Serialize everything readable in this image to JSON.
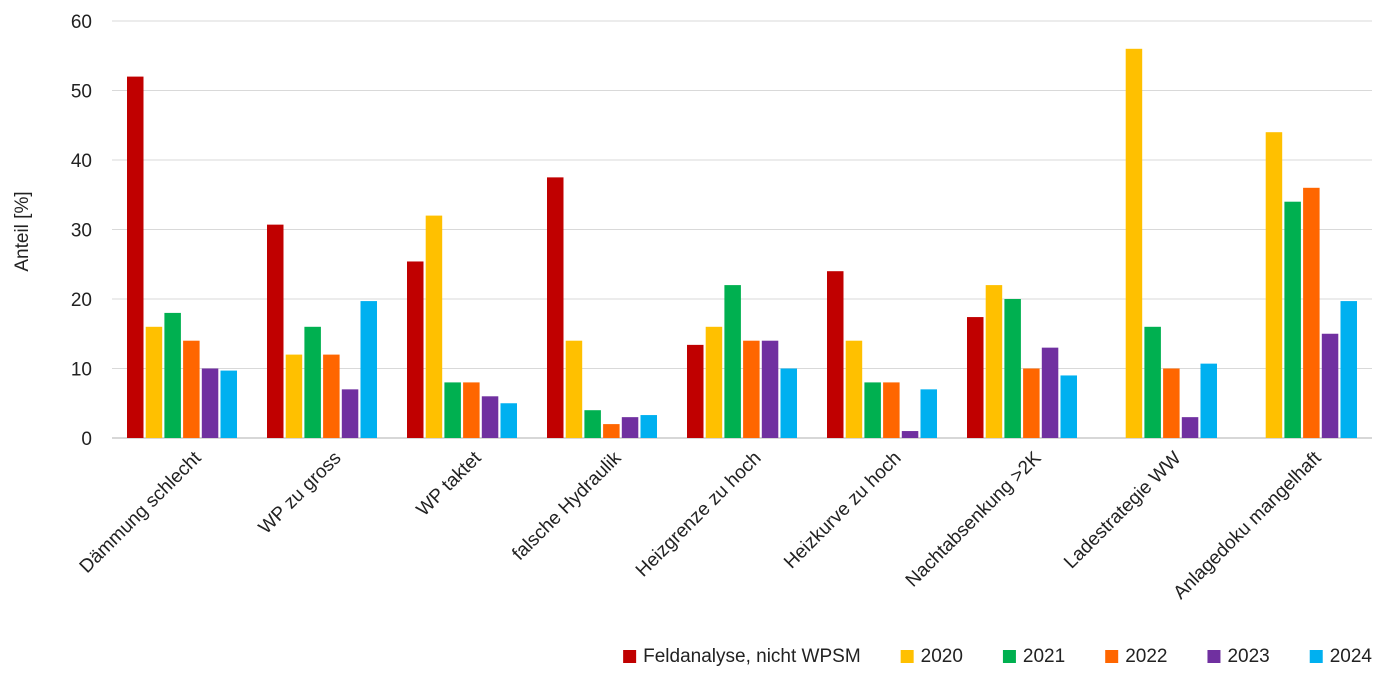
{
  "chart_data": {
    "type": "bar",
    "title": "",
    "xlabel": "",
    "ylabel": "Anteil [%]",
    "ylim": [
      0,
      60
    ],
    "yticks": [
      0,
      10,
      20,
      30,
      40,
      50,
      60
    ],
    "grid": true,
    "legend_position": "bottom-right",
    "categories": [
      "Dämmung schlecht",
      "WP zu gross",
      "WP taktet",
      "falsche Hydraulik",
      "Heizgrenze zu hoch",
      "Heizkurve zu hoch",
      "Nachtabsenkung >2K",
      "Ladestrategie WW",
      "Anlagedoku mangelhaft"
    ],
    "series": [
      {
        "name": "Feldanalyse, nicht WPSM",
        "color": "#c00000",
        "values": [
          52,
          30.7,
          25.4,
          37.5,
          13.4,
          24,
          17.4,
          null,
          null
        ]
      },
      {
        "name": "2020",
        "color": "#ffc000",
        "values": [
          16,
          12,
          32,
          14,
          16,
          14,
          22,
          56,
          44
        ]
      },
      {
        "name": "2021",
        "color": "#00b050",
        "values": [
          18,
          16,
          8,
          4,
          22,
          8,
          20,
          16,
          34
        ]
      },
      {
        "name": "2022",
        "color": "#ff6600",
        "values": [
          14,
          12,
          8,
          2,
          14,
          8,
          10,
          10,
          36
        ]
      },
      {
        "name": "2023",
        "color": "#7030a0",
        "values": [
          10,
          7,
          6,
          3,
          14,
          1,
          13,
          3,
          15
        ]
      },
      {
        "name": "2024",
        "color": "#00b0f0",
        "values": [
          9.7,
          19.7,
          5,
          3.3,
          10,
          7,
          9,
          10.7,
          19.7
        ]
      }
    ]
  }
}
